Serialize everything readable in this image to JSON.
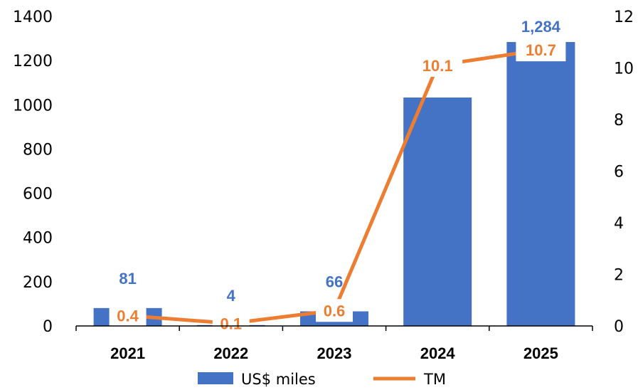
{
  "chart_data": {
    "type": "bar",
    "categories": [
      "2021",
      "2022",
      "2023",
      "2024",
      "2025"
    ],
    "series": [
      {
        "name": "US$ miles",
        "type": "bar",
        "axis": "left",
        "values": [
          81,
          4,
          66,
          1033,
          1284
        ],
        "data_labels": [
          "81",
          "4",
          "66",
          "",
          "1,284"
        ],
        "color": "#4472C4"
      },
      {
        "name": "TM",
        "type": "line",
        "axis": "right",
        "values": [
          0.4,
          0.1,
          0.6,
          10.1,
          10.7
        ],
        "data_labels": [
          "0.4",
          "0.1",
          "0.6",
          "10.1",
          "10.7"
        ],
        "color": "#ED7D31"
      }
    ],
    "y_left": {
      "min": 0,
      "max": 1400,
      "ticks": [
        "0",
        "200",
        "400",
        "600",
        "800",
        "1000",
        "1200",
        "1400"
      ]
    },
    "y_right": {
      "min": 0,
      "max": 12,
      "ticks": [
        "0",
        "2",
        "4",
        "6",
        "8",
        "10",
        "12"
      ]
    },
    "grid": false,
    "legend": "bottom"
  }
}
